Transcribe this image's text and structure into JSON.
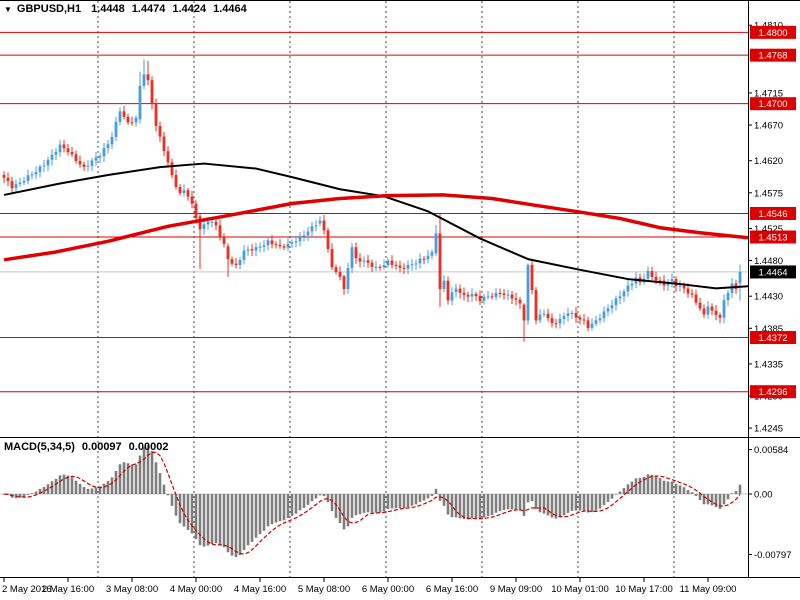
{
  "header": {
    "symbol_icon": "▼",
    "symbol": "GBPUSD,H1",
    "open": "1.4448",
    "high": "1.4474",
    "low": "1.4424",
    "close": "1.4464"
  },
  "macd_label": {
    "name": "MACD(5,34,5)",
    "main": "0.00097",
    "signal": "0.00002"
  },
  "colors": {
    "background": "#ffffff",
    "bull": "#4a9ce0",
    "bear": "#ee2e1f",
    "level": "#dd0000",
    "ma_fast_color": "#000000",
    "ma_slow_color": "#e00000",
    "histogram": "#7d7d7d",
    "signal": "#cc0000",
    "current_line": "#c6c6c6",
    "current_badge": "#000000",
    "level_badge": "#dd0000",
    "badge_text": "#ffffff",
    "separator": "#4a4a4a",
    "zero_line": "#c8c8c8",
    "frame": "#000000"
  },
  "price_axis": {
    "ticks": [
      "1.4810",
      "1.4715",
      "1.4670",
      "1.4620",
      "1.4575",
      "1.4525",
      "1.4480",
      "1.4430",
      "1.4385",
      "1.4335",
      "1.4290",
      "1.4245"
    ],
    "current": "1.4464"
  },
  "macd_axis": {
    "ticks": [
      "0.00584",
      "0.00",
      "-0.00797"
    ]
  },
  "time_axis": {
    "ticks": [
      {
        "label": "2 May 2016",
        "bar": 0
      },
      {
        "label": "2 May 16:00",
        "bar": 16
      },
      {
        "label": "3 May 08:00",
        "bar": 32
      },
      {
        "label": "4 May 00:00",
        "bar": 48
      },
      {
        "label": "4 May 16:00",
        "bar": 64
      },
      {
        "label": "5 May 08:00",
        "bar": 80
      },
      {
        "label": "6 May 00:00",
        "bar": 96
      },
      {
        "label": "6 May 16:00",
        "bar": 112
      },
      {
        "label": "9 May 09:00",
        "bar": 128
      },
      {
        "label": "10 May 01:00",
        "bar": 144
      },
      {
        "label": "10 May 17:00",
        "bar": 160
      },
      {
        "label": "11 May 09:00",
        "bar": 176
      }
    ]
  },
  "levels": [
    "1.4800",
    "1.4768",
    "1.4700",
    "1.4546",
    "1.4513",
    "1.4372",
    "1.4296"
  ],
  "day_separators_bars": [
    24,
    48,
    72,
    96,
    120,
    144,
    168
  ],
  "chart_data": {
    "type": "candlestick",
    "title": "GBPUSD,H1",
    "bars_total": 185,
    "price_range": [
      1.4245,
      1.481
    ],
    "horizontal_levels": [
      1.48,
      1.4768,
      1.47,
      1.4546,
      1.4513,
      1.4372,
      1.4296
    ],
    "current_price": 1.4464,
    "last_bar_ohlc": [
      1.4448,
      1.4474,
      1.4424,
      1.4464
    ],
    "close_anchors": [
      [
        0,
        1.4595
      ],
      [
        2,
        1.4584
      ],
      [
        4,
        1.459
      ],
      [
        8,
        1.4604
      ],
      [
        12,
        1.4628
      ],
      [
        14,
        1.464
      ],
      [
        16,
        1.4633
      ],
      [
        18,
        1.4622
      ],
      [
        20,
        1.461
      ],
      [
        22,
        1.4618
      ],
      [
        24,
        1.4628
      ],
      [
        26,
        1.4645
      ],
      [
        27,
        1.4655
      ],
      [
        29,
        1.469
      ],
      [
        30,
        1.468
      ],
      [
        31,
        1.4672
      ],
      [
        32,
        1.4676
      ],
      [
        33,
        1.468
      ],
      [
        34,
        1.4725
      ],
      [
        35,
        1.4741
      ],
      [
        36,
        1.4733
      ],
      [
        37,
        1.47
      ],
      [
        38,
        1.4668
      ],
      [
        39,
        1.4652
      ],
      [
        40,
        1.4636
      ],
      [
        41,
        1.4618
      ],
      [
        42,
        1.46
      ],
      [
        43,
        1.4585
      ],
      [
        44,
        1.4572
      ],
      [
        45,
        1.4578
      ],
      [
        46,
        1.457
      ],
      [
        47,
        1.4558
      ],
      [
        48,
        1.4542
      ],
      [
        49,
        1.4524
      ],
      [
        51,
        1.4536
      ],
      [
        53,
        1.4528
      ],
      [
        55,
        1.4502
      ],
      [
        56,
        1.4482
      ],
      [
        58,
        1.4472
      ],
      [
        60,
        1.4492
      ],
      [
        63,
        1.4498
      ],
      [
        66,
        1.4506
      ],
      [
        69,
        1.4498
      ],
      [
        72,
        1.4506
      ],
      [
        75,
        1.4515
      ],
      [
        78,
        1.4532
      ],
      [
        79,
        1.4536
      ],
      [
        80,
        1.4522
      ],
      [
        81,
        1.4498
      ],
      [
        82,
        1.4468
      ],
      [
        84,
        1.4458
      ],
      [
        85,
        1.444
      ],
      [
        86,
        1.4472
      ],
      [
        87,
        1.45
      ],
      [
        88,
        1.4482
      ],
      [
        90,
        1.4478
      ],
      [
        93,
        1.447
      ],
      [
        96,
        1.4478
      ],
      [
        99,
        1.4468
      ],
      [
        102,
        1.4476
      ],
      [
        105,
        1.4482
      ],
      [
        107,
        1.449
      ],
      [
        108,
        1.4518
      ],
      [
        109,
        1.444
      ],
      [
        110,
        1.4452
      ],
      [
        111,
        1.4426
      ],
      [
        113,
        1.444
      ],
      [
        115,
        1.443
      ],
      [
        117,
        1.4434
      ],
      [
        119,
        1.4425
      ],
      [
        122,
        1.443
      ],
      [
        124,
        1.4436
      ],
      [
        127,
        1.4428
      ],
      [
        129,
        1.4418
      ],
      [
        130,
        1.4396
      ],
      [
        131,
        1.4474
      ],
      [
        132,
        1.444
      ],
      [
        133,
        1.4398
      ],
      [
        135,
        1.4406
      ],
      [
        137,
        1.439
      ],
      [
        139,
        1.4398
      ],
      [
        141,
        1.4408
      ],
      [
        143,
        1.44
      ],
      [
        145,
        1.4394
      ],
      [
        146,
        1.4388
      ],
      [
        148,
        1.4396
      ],
      [
        150,
        1.4406
      ],
      [
        152,
        1.4418
      ],
      [
        154,
        1.4432
      ],
      [
        156,
        1.4444
      ],
      [
        158,
        1.4454
      ],
      [
        159,
        1.4448
      ],
      [
        161,
        1.4464
      ],
      [
        163,
        1.4454
      ],
      [
        165,
        1.4446
      ],
      [
        167,
        1.4452
      ],
      [
        168,
        1.4446
      ],
      [
        170,
        1.4442
      ],
      [
        172,
        1.443
      ],
      [
        174,
        1.4412
      ],
      [
        175,
        1.4402
      ],
      [
        176,
        1.4418
      ],
      [
        177,
        1.441
      ],
      [
        178,
        1.4404
      ],
      [
        179,
        1.4402
      ],
      [
        180,
        1.4422
      ],
      [
        181,
        1.4434
      ],
      [
        182,
        1.4448
      ],
      [
        183,
        1.4438
      ],
      [
        184,
        1.4464
      ]
    ],
    "ohlc_overrides": {
      "34": [
        1.4678,
        1.4745,
        1.4672,
        1.4725
      ],
      "35": [
        1.4725,
        1.4762,
        1.472,
        1.4741
      ],
      "36": [
        1.4741,
        1.476,
        1.4726,
        1.4733
      ],
      "49": [
        1.4542,
        1.4546,
        1.4468,
        1.4524
      ],
      "56": [
        1.45,
        1.4504,
        1.4457,
        1.4482
      ],
      "79": [
        1.4532,
        1.4542,
        1.4528,
        1.4536
      ],
      "85": [
        1.4458,
        1.446,
        1.4432,
        1.444
      ],
      "108": [
        1.449,
        1.453,
        1.4486,
        1.4518
      ],
      "109": [
        1.4518,
        1.4545,
        1.4415,
        1.444
      ],
      "130": [
        1.4418,
        1.442,
        1.4366,
        1.4396
      ],
      "131": [
        1.4396,
        1.4476,
        1.439,
        1.4474
      ],
      "184": [
        1.4448,
        1.4474,
        1.4424,
        1.4464
      ]
    },
    "ma_fast_anchors": [
      [
        0,
        1.4572
      ],
      [
        14,
        1.4588
      ],
      [
        26,
        1.46
      ],
      [
        39,
        1.4611
      ],
      [
        50,
        1.4616
      ],
      [
        63,
        1.4609
      ],
      [
        72,
        1.4597
      ],
      [
        84,
        1.458
      ],
      [
        95,
        1.457
      ],
      [
        106,
        1.4549
      ],
      [
        119,
        1.4511
      ],
      [
        131,
        1.4482
      ],
      [
        144,
        1.4467
      ],
      [
        156,
        1.4454
      ],
      [
        169,
        1.4447
      ],
      [
        178,
        1.4441
      ],
      [
        186,
        1.4444
      ]
    ],
    "ma_slow_anchors": [
      [
        0,
        1.4481
      ],
      [
        13,
        1.4492
      ],
      [
        26,
        1.4507
      ],
      [
        41,
        1.4528
      ],
      [
        55,
        1.4542
      ],
      [
        72,
        1.456
      ],
      [
        84,
        1.4567
      ],
      [
        96,
        1.4571
      ],
      [
        110,
        1.4572
      ],
      [
        122,
        1.4567
      ],
      [
        131,
        1.4559
      ],
      [
        144,
        1.4548
      ],
      [
        154,
        1.4539
      ],
      [
        164,
        1.4526
      ],
      [
        174,
        1.4519
      ],
      [
        186,
        1.4512
      ]
    ],
    "indicator": {
      "type": "MACD",
      "params": [
        5,
        34,
        5
      ],
      "last_main": 0.00097,
      "last_signal": 2e-05,
      "range": [
        -0.00797,
        0.00584
      ]
    }
  }
}
